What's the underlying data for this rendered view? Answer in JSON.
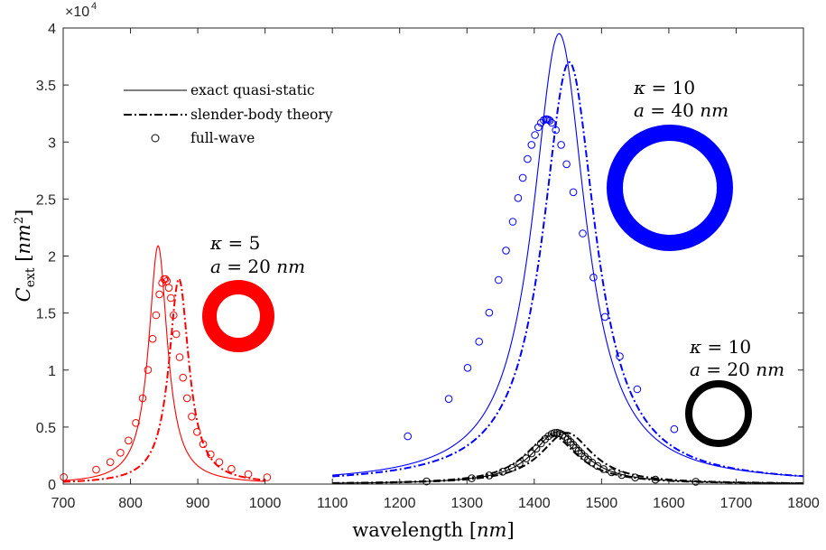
{
  "chart_data": {
    "type": "line",
    "xlabel": "wavelength [nm]",
    "ylabel": "C_ext [nm^2]",
    "xlim": [
      700,
      1800
    ],
    "ylim": [
      0,
      40000
    ],
    "xticks": [
      700,
      800,
      900,
      1000,
      1100,
      1200,
      1300,
      1400,
      1500,
      1600,
      1700,
      1800
    ],
    "yticks": [
      0,
      0.5,
      1,
      1.5,
      2,
      2.5,
      3,
      3.5,
      4
    ],
    "y_multiplier": "×10^4",
    "grid": false,
    "legend_position": "top-left",
    "legend": [
      {
        "label": "exact quasi-static",
        "style": "solid"
      },
      {
        "label": "slender-body theory",
        "style": "dashdot"
      },
      {
        "label": "full-wave",
        "style": "circle"
      }
    ],
    "annotations": [
      {
        "text": "κ = 5",
        "text2": "a = 20 nm",
        "color": "#ff0000"
      },
      {
        "text": "κ = 10",
        "text2": "a = 40 nm",
        "color": "#0000ff"
      },
      {
        "text": "κ = 10",
        "text2": "a = 20 nm",
        "color": "#000000"
      }
    ],
    "series": [
      {
        "color": "#ff0000",
        "style": "solid",
        "x0": 841,
        "gamma": 17,
        "peak": 20900,
        "range": [
          700,
          1000
        ]
      },
      {
        "color": "#ff0000",
        "style": "dashdot",
        "x0": 872,
        "gamma": 18,
        "peak": 18000,
        "range": [
          700,
          1000
        ]
      },
      {
        "color": "#ff0000",
        "style": "circle",
        "x0": 851,
        "gamma": 28,
        "peak": 18000,
        "x": [
          701,
          749,
          770,
          785,
          797,
          808,
          818,
          826,
          833,
          838,
          843,
          847,
          850,
          852,
          854,
          857,
          860,
          864,
          868,
          873,
          878,
          884,
          891,
          899,
          908,
          919,
          932,
          950,
          975,
          1003
        ]
      },
      {
        "color": "#0000ff",
        "style": "solid",
        "x0": 1437,
        "gamma": 48,
        "peak": 39500,
        "range": [
          1100,
          1800
        ]
      },
      {
        "color": "#0000ff",
        "style": "dashdot",
        "x0": 1452,
        "gamma": 48,
        "peak": 37000,
        "range": [
          1100,
          1800
        ]
      },
      {
        "color": "#0000ff",
        "style": "circle",
        "x0": 1418,
        "gamma": 80,
        "peak": 32000,
        "x": [
          1212,
          1273,
          1301,
          1318,
          1333,
          1347,
          1358,
          1368,
          1376,
          1383,
          1390,
          1396,
          1401,
          1406,
          1410,
          1414,
          1417,
          1419,
          1421,
          1423,
          1426,
          1432,
          1440,
          1448,
          1458,
          1472,
          1488,
          1505,
          1527,
          1553,
          1608
        ]
      },
      {
        "color": "#000000",
        "style": "solid",
        "x0": 1435,
        "gamma": 45,
        "peak": 4600,
        "range": [
          1100,
          1800
        ]
      },
      {
        "color": "#000000",
        "style": "dashdot",
        "x0": 1448,
        "gamma": 47,
        "peak": 4500,
        "range": [
          1100,
          1800
        ]
      },
      {
        "color": "#000000",
        "style": "dashdot",
        "x0": 1425,
        "gamma": 47,
        "peak": 4300,
        "range": [
          1100,
          1800
        ]
      },
      {
        "color": "#000000",
        "style": "circle",
        "x0": 1433,
        "gamma": 45,
        "peak": 4500,
        "x": [
          1240,
          1307,
          1333,
          1353,
          1367,
          1378,
          1388,
          1396,
          1403,
          1410,
          1416,
          1421,
          1426,
          1430,
          1434,
          1438,
          1442,
          1446,
          1450,
          1454,
          1458,
          1462,
          1466,
          1470,
          1475,
          1480,
          1486,
          1494,
          1503,
          1515,
          1530,
          1550,
          1580,
          1640
        ]
      }
    ]
  }
}
